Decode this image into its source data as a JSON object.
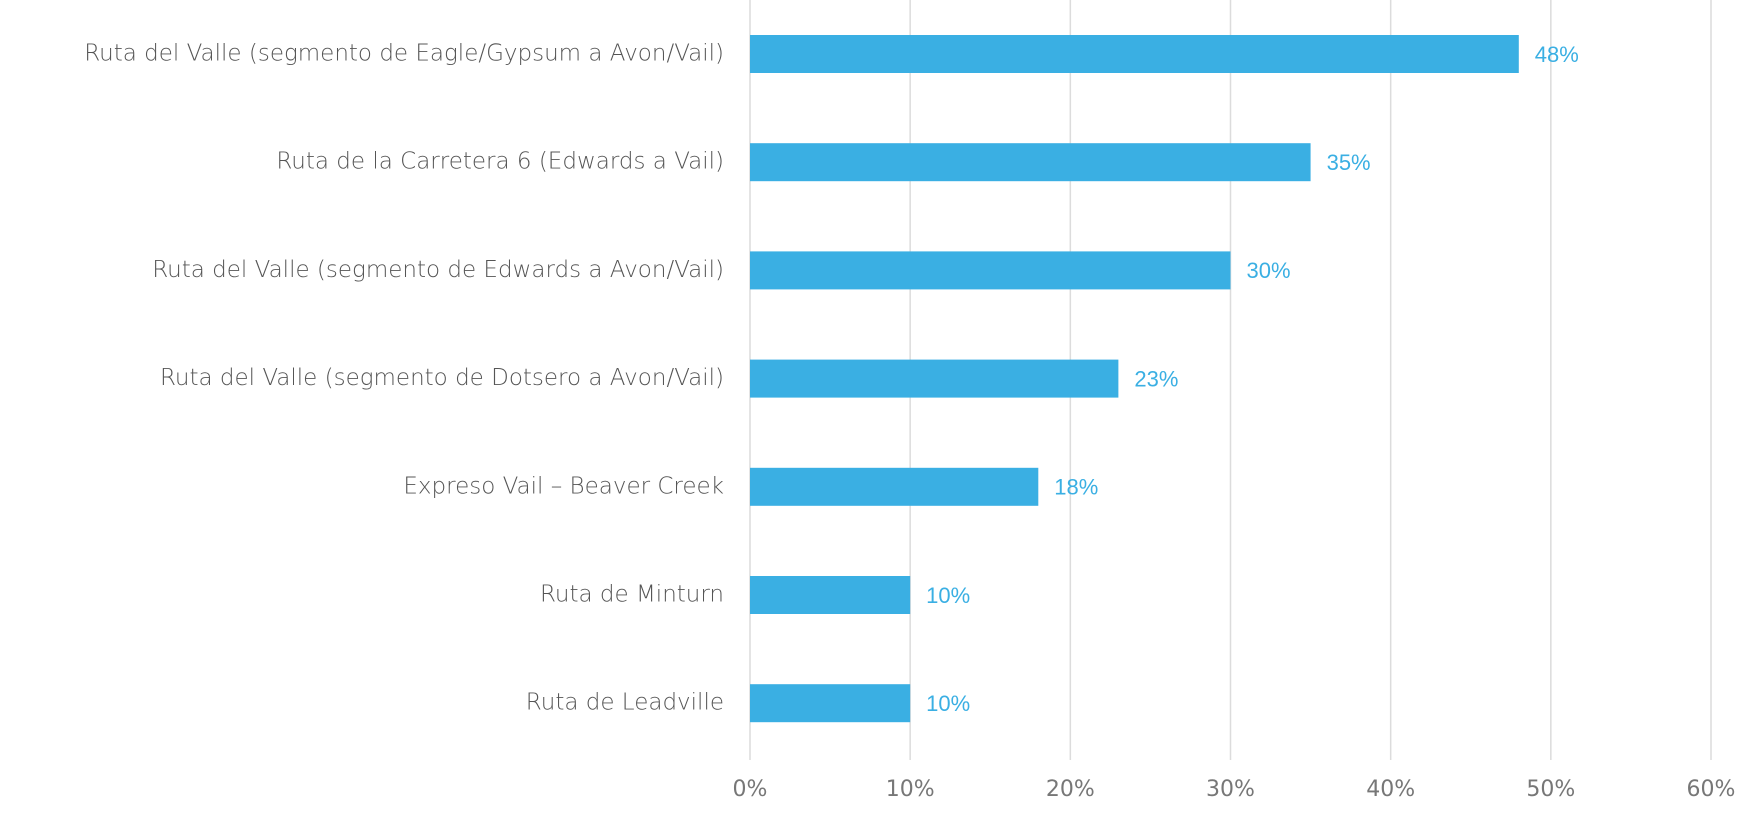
{
  "chart_data": {
    "type": "bar",
    "orientation": "horizontal",
    "categories": [
      "Ruta del Valle (segmento de Eagle/Gypsum a Avon/Vail)",
      "Ruta de la Carretera 6 (Edwards a Vail)",
      "Ruta del Valle (segmento de Edwards a Avon/Vail)",
      "Ruta del Valle (segmento de Dotsero a Avon/Vail)",
      "Expreso Vail – Beaver Creek",
      "Ruta de Minturn",
      "Ruta de Leadville"
    ],
    "values": [
      48,
      35,
      30,
      23,
      18,
      10,
      10
    ],
    "value_labels": [
      "48%",
      "35%",
      "30%",
      "23%",
      "18%",
      "10%",
      "10%"
    ],
    "color": "#3aafe3",
    "xlim": [
      0,
      60
    ],
    "xticks": [
      {
        "value": 0,
        "label": "0%"
      },
      {
        "value": 10,
        "label": "10%"
      },
      {
        "value": 20,
        "label": "20%"
      },
      {
        "value": 30,
        "label": "30%"
      },
      {
        "value": 40,
        "label": "40%"
      },
      {
        "value": 50,
        "label": "50%"
      },
      {
        "value": 60,
        "label": "60%"
      }
    ],
    "grid": true
  }
}
